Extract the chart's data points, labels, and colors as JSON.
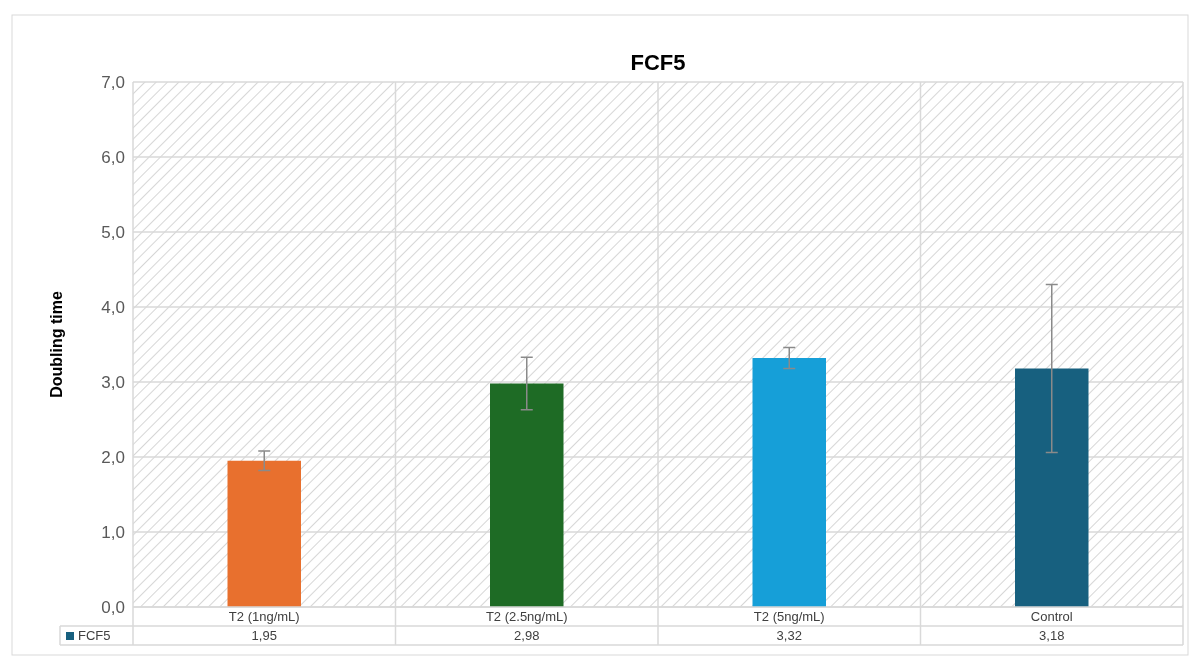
{
  "chart_data": {
    "type": "bar",
    "title": "FCF5",
    "ylabel": "Doubling time",
    "categories": [
      "T2 (1ng/mL)",
      "T2 (2.5ng/mL)",
      "T2 (5ng/mL)",
      "Control"
    ],
    "series": [
      {
        "name": "FCF5",
        "color": "#17607f",
        "colors": [
          "#e8702e",
          "#1e6b25",
          "#169fd8",
          "#17607f"
        ],
        "values": [
          1.95,
          2.98,
          3.32,
          3.18
        ],
        "value_labels": [
          "1,95",
          "2,98",
          "3,32",
          "3,18"
        ],
        "errors": [
          0.13,
          0.35,
          0.14,
          1.12
        ]
      }
    ],
    "ylim": [
      0,
      7
    ],
    "yticks": [
      {
        "value": 0,
        "label": "0,0"
      },
      {
        "value": 1,
        "label": "1,0"
      },
      {
        "value": 2,
        "label": "2,0"
      },
      {
        "value": 3,
        "label": "3,0"
      },
      {
        "value": 4,
        "label": "4,0"
      },
      {
        "value": 5,
        "label": "5,0"
      },
      {
        "value": 6,
        "label": "6,0"
      },
      {
        "value": 7,
        "label": "7,0"
      }
    ],
    "grid": true
  }
}
